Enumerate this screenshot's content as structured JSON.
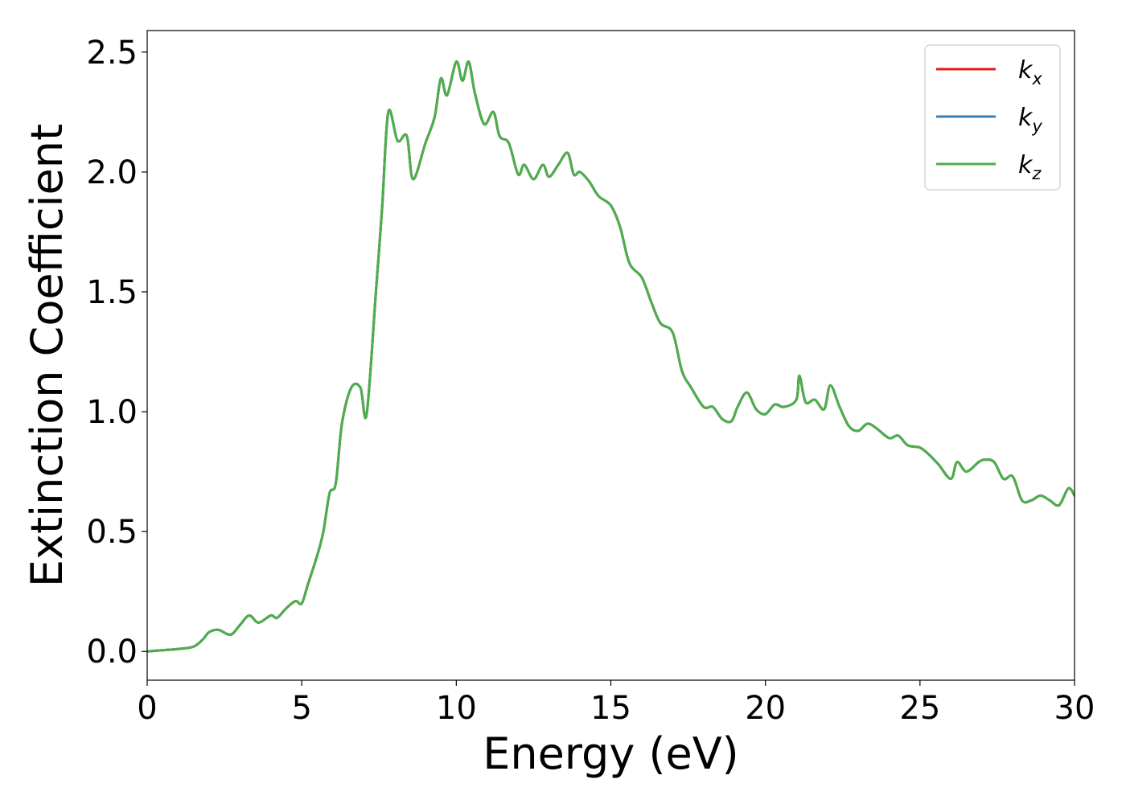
{
  "chart_data": {
    "type": "line",
    "xlabel": "Energy (eV)",
    "ylabel": "Extinction Coefficient",
    "xlim": [
      0,
      30
    ],
    "ylim": [
      -0.12,
      2.59
    ],
    "xticks": [
      0,
      5,
      10,
      15,
      20,
      25,
      30
    ],
    "xtick_labels": [
      "0",
      "5",
      "10",
      "15",
      "20",
      "25",
      "30"
    ],
    "yticks": [
      0.0,
      0.5,
      1.0,
      1.5,
      2.0,
      2.5
    ],
    "ytick_labels": [
      "0.0",
      "0.5",
      "1.0",
      "1.5",
      "2.0",
      "2.5"
    ],
    "grid": false,
    "legend_position": "top-right",
    "x": [
      0,
      0.5,
      1.0,
      1.5,
      1.8,
      2.0,
      2.3,
      2.7,
      3.0,
      3.3,
      3.6,
      4.0,
      4.2,
      4.5,
      4.8,
      5.0,
      5.2,
      5.5,
      5.7,
      5.9,
      6.1,
      6.3,
      6.6,
      6.9,
      7.1,
      7.4,
      7.6,
      7.8,
      8.1,
      8.4,
      8.6,
      9.0,
      9.3,
      9.5,
      9.7,
      10.0,
      10.2,
      10.4,
      10.6,
      10.9,
      11.2,
      11.4,
      11.7,
      12.0,
      12.2,
      12.5,
      12.8,
      13.0,
      13.3,
      13.6,
      13.8,
      14.0,
      14.3,
      14.6,
      15.0,
      15.3,
      15.6,
      16.0,
      16.3,
      16.6,
      17.0,
      17.3,
      17.6,
      18.0,
      18.3,
      18.6,
      18.9,
      19.1,
      19.4,
      19.7,
      20.0,
      20.3,
      20.6,
      21.0,
      21.1,
      21.3,
      21.6,
      21.9,
      22.1,
      22.4,
      22.7,
      23.0,
      23.3,
      23.6,
      24.0,
      24.3,
      24.6,
      25.0,
      25.3,
      25.6,
      26.0,
      26.2,
      26.5,
      26.9,
      27.1,
      27.4,
      27.7,
      28.0,
      28.3,
      28.6,
      28.9,
      29.2,
      29.5,
      29.8,
      30.0
    ],
    "series": [
      {
        "name": "k_x",
        "label_main": "k",
        "label_sub": "x",
        "color": "#e41a1c",
        "values": [
          0.0,
          0.005,
          0.01,
          0.02,
          0.05,
          0.08,
          0.09,
          0.07,
          0.11,
          0.15,
          0.12,
          0.15,
          0.14,
          0.18,
          0.21,
          0.2,
          0.28,
          0.4,
          0.5,
          0.66,
          0.7,
          0.95,
          1.1,
          1.1,
          0.99,
          1.5,
          1.85,
          2.25,
          2.13,
          2.15,
          1.97,
          2.12,
          2.23,
          2.39,
          2.32,
          2.46,
          2.38,
          2.46,
          2.33,
          2.2,
          2.25,
          2.15,
          2.12,
          1.99,
          2.03,
          1.97,
          2.03,
          1.98,
          2.03,
          2.08,
          1.99,
          2.0,
          1.96,
          1.9,
          1.86,
          1.77,
          1.62,
          1.56,
          1.46,
          1.37,
          1.33,
          1.17,
          1.1,
          1.02,
          1.02,
          0.97,
          0.96,
          1.02,
          1.08,
          1.01,
          0.99,
          1.03,
          1.02,
          1.05,
          1.15,
          1.04,
          1.05,
          1.01,
          1.11,
          1.02,
          0.94,
          0.92,
          0.95,
          0.93,
          0.89,
          0.9,
          0.86,
          0.85,
          0.82,
          0.78,
          0.72,
          0.79,
          0.75,
          0.79,
          0.8,
          0.79,
          0.72,
          0.73,
          0.63,
          0.63,
          0.65,
          0.63,
          0.61,
          0.68,
          0.65
        ]
      },
      {
        "name": "k_y",
        "label_main": "k",
        "label_sub": "y",
        "color": "#377eb8",
        "values": [
          0.0,
          0.005,
          0.01,
          0.02,
          0.05,
          0.08,
          0.09,
          0.07,
          0.11,
          0.15,
          0.12,
          0.15,
          0.14,
          0.18,
          0.21,
          0.2,
          0.28,
          0.4,
          0.5,
          0.66,
          0.7,
          0.95,
          1.1,
          1.1,
          0.99,
          1.5,
          1.85,
          2.25,
          2.13,
          2.15,
          1.97,
          2.12,
          2.23,
          2.39,
          2.32,
          2.46,
          2.38,
          2.46,
          2.33,
          2.2,
          2.25,
          2.15,
          2.12,
          1.99,
          2.03,
          1.97,
          2.03,
          1.98,
          2.03,
          2.08,
          1.99,
          2.0,
          1.96,
          1.9,
          1.86,
          1.77,
          1.62,
          1.56,
          1.46,
          1.37,
          1.33,
          1.17,
          1.1,
          1.02,
          1.02,
          0.97,
          0.96,
          1.02,
          1.08,
          1.01,
          0.99,
          1.03,
          1.02,
          1.05,
          1.15,
          1.04,
          1.05,
          1.01,
          1.11,
          1.02,
          0.94,
          0.92,
          0.95,
          0.93,
          0.89,
          0.9,
          0.86,
          0.85,
          0.82,
          0.78,
          0.72,
          0.79,
          0.75,
          0.79,
          0.8,
          0.79,
          0.72,
          0.73,
          0.63,
          0.63,
          0.65,
          0.63,
          0.61,
          0.68,
          0.65
        ]
      },
      {
        "name": "k_z",
        "label_main": "k",
        "label_sub": "z",
        "color": "#4daf4a",
        "values": [
          0.0,
          0.005,
          0.01,
          0.02,
          0.05,
          0.08,
          0.09,
          0.07,
          0.11,
          0.15,
          0.12,
          0.15,
          0.14,
          0.18,
          0.21,
          0.2,
          0.28,
          0.4,
          0.5,
          0.66,
          0.7,
          0.95,
          1.1,
          1.1,
          0.99,
          1.5,
          1.85,
          2.25,
          2.13,
          2.15,
          1.97,
          2.12,
          2.23,
          2.39,
          2.32,
          2.46,
          2.38,
          2.46,
          2.33,
          2.2,
          2.25,
          2.15,
          2.12,
          1.99,
          2.03,
          1.97,
          2.03,
          1.98,
          2.03,
          2.08,
          1.99,
          2.0,
          1.96,
          1.9,
          1.86,
          1.77,
          1.62,
          1.56,
          1.46,
          1.37,
          1.33,
          1.17,
          1.1,
          1.02,
          1.02,
          0.97,
          0.96,
          1.02,
          1.08,
          1.01,
          0.99,
          1.03,
          1.02,
          1.05,
          1.15,
          1.04,
          1.05,
          1.01,
          1.11,
          1.02,
          0.94,
          0.92,
          0.95,
          0.93,
          0.89,
          0.9,
          0.86,
          0.85,
          0.82,
          0.78,
          0.72,
          0.79,
          0.75,
          0.79,
          0.8,
          0.79,
          0.72,
          0.73,
          0.63,
          0.63,
          0.65,
          0.63,
          0.61,
          0.68,
          0.65
        ]
      }
    ]
  }
}
